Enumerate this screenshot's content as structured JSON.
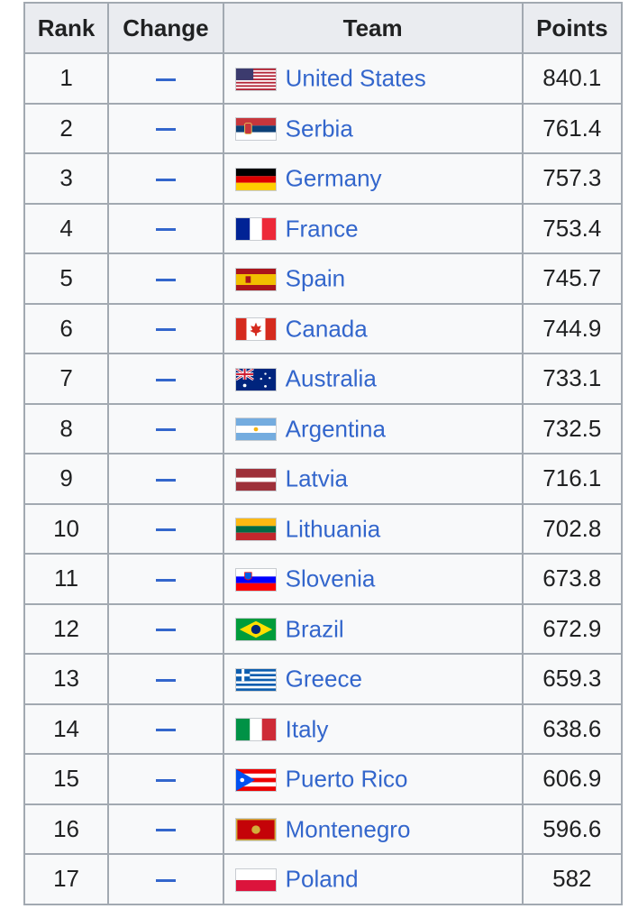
{
  "table": {
    "headers": {
      "rank": "Rank",
      "change": "Change",
      "team": "Team",
      "points": "Points"
    },
    "rows": [
      {
        "rank": "1",
        "change": "—",
        "team": "United States",
        "points": "840.1",
        "flag": "flag-usa-icon"
      },
      {
        "rank": "2",
        "change": "—",
        "team": "Serbia",
        "points": "761.4",
        "flag": "flag-serbia-icon"
      },
      {
        "rank": "3",
        "change": "—",
        "team": "Germany",
        "points": "757.3",
        "flag": "flag-germany-icon"
      },
      {
        "rank": "4",
        "change": "—",
        "team": "France",
        "points": "753.4",
        "flag": "flag-france-icon"
      },
      {
        "rank": "5",
        "change": "—",
        "team": "Spain",
        "points": "745.7",
        "flag": "flag-spain-icon"
      },
      {
        "rank": "6",
        "change": "—",
        "team": "Canada",
        "points": "744.9",
        "flag": "flag-canada-icon"
      },
      {
        "rank": "7",
        "change": "—",
        "team": "Australia",
        "points": "733.1",
        "flag": "flag-australia-icon"
      },
      {
        "rank": "8",
        "change": "—",
        "team": "Argentina",
        "points": "732.5",
        "flag": "flag-argentina-icon"
      },
      {
        "rank": "9",
        "change": "—",
        "team": "Latvia",
        "points": "716.1",
        "flag": "flag-latvia-icon"
      },
      {
        "rank": "10",
        "change": "—",
        "team": "Lithuania",
        "points": "702.8",
        "flag": "flag-lithuania-icon"
      },
      {
        "rank": "11",
        "change": "—",
        "team": "Slovenia",
        "points": "673.8",
        "flag": "flag-slovenia-icon"
      },
      {
        "rank": "12",
        "change": "—",
        "team": "Brazil",
        "points": "672.9",
        "flag": "flag-brazil-icon"
      },
      {
        "rank": "13",
        "change": "—",
        "team": "Greece",
        "points": "659.3",
        "flag": "flag-greece-icon"
      },
      {
        "rank": "14",
        "change": "—",
        "team": "Italy",
        "points": "638.6",
        "flag": "flag-italy-icon"
      },
      {
        "rank": "15",
        "change": "—",
        "team": "Puerto Rico",
        "points": "606.9",
        "flag": "flag-puerto-rico-icon"
      },
      {
        "rank": "16",
        "change": "—",
        "team": "Montenegro",
        "points": "596.6",
        "flag": "flag-montenegro-icon"
      },
      {
        "rank": "17",
        "change": "—",
        "team": "Poland",
        "points": "582",
        "flag": "flag-poland-icon"
      }
    ]
  },
  "colors": {
    "link": "#3366cc",
    "header_bg": "#eaecf0",
    "cell_bg": "#f8f9fa",
    "border": "#a2a9b1"
  }
}
